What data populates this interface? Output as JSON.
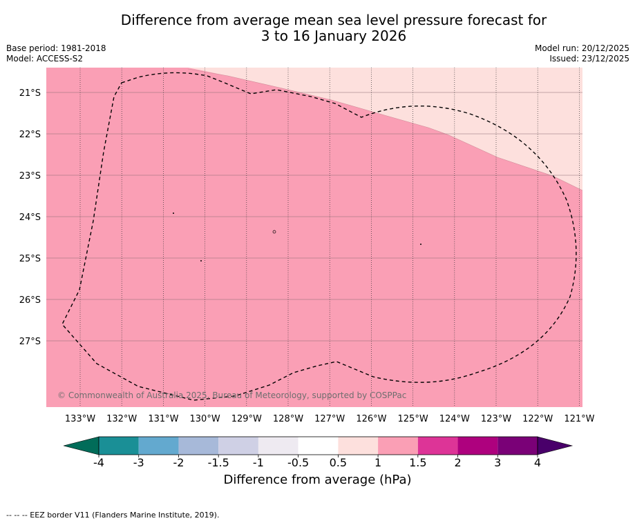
{
  "title_line1": "Difference from average mean sea level pressure forecast for",
  "title_line2": "3 to 16 January 2026",
  "base_period": "Base period: 1981-2018",
  "model": "Model: ACCESS-S2",
  "model_run": "Model run: 20/12/2025",
  "issued": "Issued: 23/12/2025",
  "copyright": "© Commonwealth of Australia 2025, Bureau of Meteorology, supported by COSPPac",
  "lat_labels": [
    "21°S",
    "22°S",
    "23°S",
    "24°S",
    "25°S",
    "26°S",
    "27°S"
  ],
  "lon_labels": [
    "133°W",
    "132°W",
    "131°W",
    "130°W",
    "129°W",
    "128°W",
    "127°W",
    "126°W",
    "125°W",
    "124°W",
    "123°W",
    "122°W",
    "121°W"
  ],
  "colorbar": {
    "title": "Difference from average (hPa)",
    "tick_labels": [
      "-4",
      "-3",
      "-2",
      "-1.5",
      "-1",
      "-0.5",
      "0.5",
      "1",
      "1.5",
      "2",
      "3",
      "4"
    ],
    "colors": [
      "#1a8f96",
      "#63a9cf",
      "#a7b9d9",
      "#cfd0e5",
      "#eeeaf1",
      "#ffffff",
      "#fde0dd",
      "#fa9fb5",
      "#dd3497",
      "#ae017e",
      "#7a0177"
    ],
    "low_extend_color": "#016c59",
    "high_extend_color": "#49006a"
  },
  "fill_colors": {
    "ocean_main": "#fa9fb5",
    "ocean_light": "#fde0dd"
  },
  "legend_note": "--  --  -- EEZ border V11 (Flanders Marine Institute, 2019)."
}
